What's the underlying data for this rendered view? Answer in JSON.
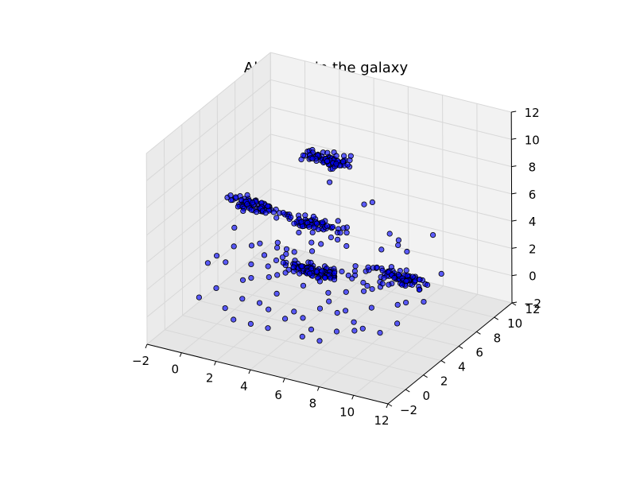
{
  "chart_data": {
    "type": "scatter",
    "projection": "3d",
    "title": "All points in the galaxy",
    "xlabel": "",
    "ylabel": "",
    "zlabel": "",
    "xlim": [
      -2,
      12
    ],
    "ylim": [
      -2,
      12
    ],
    "zlim": [
      -2,
      12
    ],
    "xticks": [
      "−2",
      "0",
      "2",
      "4",
      "6",
      "8",
      "10",
      "12"
    ],
    "yticks": [
      "−2",
      "0",
      "2",
      "4",
      "6",
      "8",
      "10",
      "12"
    ],
    "zticks": [
      "−2",
      "0",
      "2",
      "4",
      "6",
      "8",
      "10",
      "12"
    ],
    "grid": true,
    "marker_color": "#0000ff",
    "clusters": [
      {
        "center": [
          1,
          4,
          6
        ],
        "spread": [
          0.7,
          0.2,
          0.2
        ],
        "count": 70
      },
      {
        "center": [
          5,
          5,
          10
        ],
        "spread": [
          0.7,
          0.2,
          0.2
        ],
        "count": 80
      },
      {
        "center": [
          4,
          5,
          5
        ],
        "spread": [
          0.9,
          0.2,
          0.2
        ],
        "count": 70
      },
      {
        "center": [
          5,
          3,
          3
        ],
        "spread": [
          1.0,
          0.2,
          0.2
        ],
        "count": 110
      },
      {
        "center": [
          10,
          3,
          4
        ],
        "spread": [
          0.8,
          0.2,
          0.2
        ],
        "count": 80
      }
    ],
    "scatter_points": [
      [
        0,
        1,
        3
      ],
      [
        1,
        0,
        2
      ],
      [
        2,
        1,
        1
      ],
      [
        3,
        0,
        0
      ],
      [
        2,
        2,
        2
      ],
      [
        1,
        3,
        1
      ],
      [
        4,
        1,
        2
      ],
      [
        5,
        0,
        1
      ],
      [
        6,
        1,
        0
      ],
      [
        7,
        2,
        1
      ],
      [
        8,
        1,
        2
      ],
      [
        6,
        2,
        3
      ],
      [
        3,
        4,
        3
      ],
      [
        4,
        3,
        4
      ],
      [
        2,
        5,
        3
      ],
      [
        3,
        6,
        4
      ],
      [
        6,
        5,
        4
      ],
      [
        7,
        4,
        3
      ],
      [
        8,
        3,
        3
      ],
      [
        9,
        2,
        2
      ],
      [
        10,
        5,
        3
      ],
      [
        11,
        4,
        2
      ],
      [
        9,
        6,
        4
      ],
      [
        5,
        6,
        5
      ],
      [
        6,
        7,
        6
      ],
      [
        4,
        7,
        7
      ],
      [
        7,
        6,
        7
      ],
      [
        3,
        2,
        0
      ],
      [
        2,
        0,
        0
      ],
      [
        1,
        1,
        0
      ],
      [
        0,
        0,
        1
      ],
      [
        5,
        2,
        0
      ],
      [
        6,
        0,
        0
      ],
      [
        7,
        0,
        0
      ],
      [
        8,
        2,
        0
      ],
      [
        9,
        1,
        1
      ],
      [
        8,
        4,
        2
      ],
      [
        10,
        3,
        2
      ],
      [
        11,
        6,
        3
      ],
      [
        10,
        7,
        5
      ],
      [
        2,
        3,
        4
      ],
      [
        1,
        2,
        4
      ],
      [
        0,
        2,
        3
      ],
      [
        3,
        3,
        2
      ],
      [
        4,
        4,
        1
      ],
      [
        5,
        4,
        2
      ],
      [
        6,
        3,
        1
      ],
      [
        7,
        3,
        2
      ],
      [
        2,
        6,
        2
      ],
      [
        3,
        7,
        3
      ],
      [
        4,
        6,
        3
      ],
      [
        5,
        7,
        4
      ],
      [
        8,
        6,
        5
      ],
      [
        9,
        5,
        5
      ],
      [
        1,
        5,
        5
      ],
      [
        0,
        4,
        4
      ],
      [
        6,
        6,
        2
      ],
      [
        7,
        5,
        1
      ],
      [
        10,
        1,
        1
      ],
      [
        11,
        2,
        3
      ],
      [
        3,
        1,
        1
      ],
      [
        4,
        0,
        0
      ],
      [
        5,
        1,
        1
      ],
      [
        6,
        2,
        1
      ],
      [
        2,
        4,
        1
      ],
      [
        3,
        5,
        2
      ],
      [
        4,
        5,
        3
      ],
      [
        7,
        7,
        3
      ],
      [
        8,
        7,
        4
      ],
      [
        9,
        3,
        3
      ],
      [
        10,
        4,
        4
      ],
      [
        11,
        3,
        4
      ],
      [
        0,
        3,
        2
      ],
      [
        1,
        4,
        3
      ],
      [
        2,
        2,
        3
      ],
      [
        5,
        3,
        5
      ],
      [
        6,
        4,
        5
      ],
      [
        7,
        1,
        3
      ],
      [
        8,
        0,
        1
      ],
      [
        9,
        0,
        2
      ],
      [
        10,
        2,
        4
      ],
      [
        11,
        1,
        2
      ],
      [
        4,
        2,
        3
      ],
      [
        3,
        3,
        4
      ]
    ]
  }
}
